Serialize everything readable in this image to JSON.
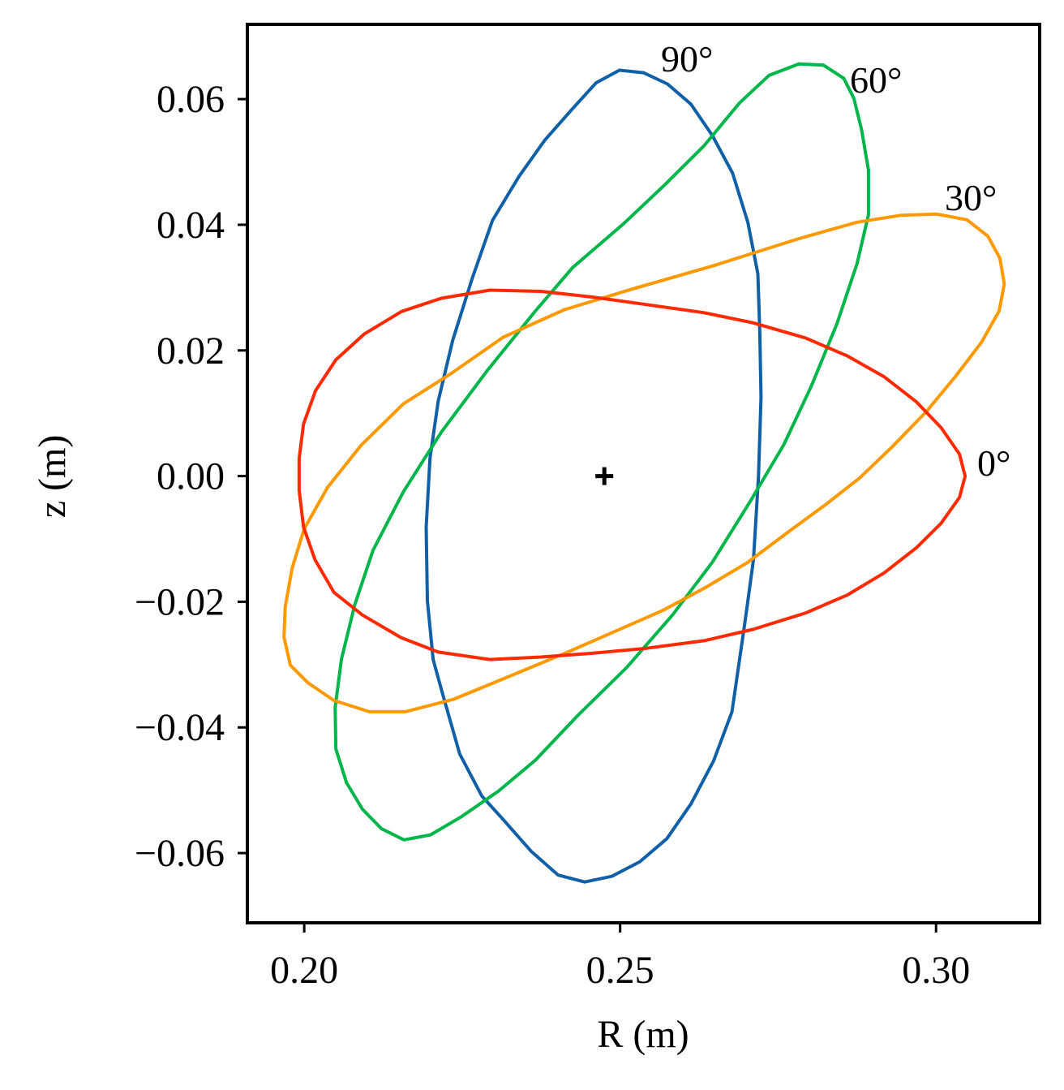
{
  "chart_data": {
    "type": "line",
    "xlabel": "R (m)",
    "ylabel": "z (m)",
    "xlim": [
      0.191,
      0.3164
    ],
    "ylim": [
      -0.0711,
      0.0719
    ],
    "xticks": [
      {
        "value": 0.2,
        "label": "0.20"
      },
      {
        "value": 0.25,
        "label": "0.25"
      },
      {
        "value": 0.3,
        "label": "0.30"
      }
    ],
    "yticks": [
      {
        "value": -0.06,
        "label": "−0.06"
      },
      {
        "value": -0.04,
        "label": "−0.04"
      },
      {
        "value": -0.02,
        "label": "−0.02"
      },
      {
        "value": 0,
        "label": "0.00"
      },
      {
        "value": 0.02,
        "label": "0.02"
      },
      {
        "value": 0.04,
        "label": "0.04"
      },
      {
        "value": 0.06,
        "label": "0.06"
      }
    ],
    "grid": false,
    "center": {
      "x": 0.2475,
      "y": 0
    },
    "series": [
      {
        "name": "90°",
        "color": "#1060a8",
        "x": [
          0.2499,
          0.2537,
          0.2575,
          0.2612,
          0.2646,
          0.2678,
          0.2702,
          0.2718,
          0.2721,
          0.2723,
          0.2719,
          0.2711,
          0.2697,
          0.2677,
          0.2648,
          0.2612,
          0.2574,
          0.2531,
          0.2487,
          0.2444,
          0.2402,
          0.2359,
          0.2317,
          0.2281,
          0.2246,
          0.222,
          0.2204,
          0.2195,
          0.2193,
          0.2199,
          0.2212,
          0.2235,
          0.2266,
          0.2298,
          0.234,
          0.2381,
          0.2425,
          0.2462
        ],
        "values": [
          0.0646,
          0.0642,
          0.0624,
          0.0592,
          0.0542,
          0.0482,
          0.0404,
          0.0322,
          0.0229,
          0.0125,
          0,
          -0.0133,
          -0.0236,
          -0.0375,
          -0.0453,
          -0.0522,
          -0.0577,
          -0.0614,
          -0.0637,
          -0.0646,
          -0.0635,
          -0.0597,
          -0.0549,
          -0.0509,
          -0.0442,
          -0.035,
          -0.0292,
          -0.0198,
          -0.0081,
          0.0028,
          0.0119,
          0.0216,
          0.0315,
          0.0407,
          0.0477,
          0.0535,
          0.0585,
          0.0626
        ]
      },
      {
        "name": "60°",
        "color": "#00b64a",
        "x": [
          0.2783,
          0.2822,
          0.2854,
          0.287,
          0.2882,
          0.2893,
          0.2893,
          0.2875,
          0.2843,
          0.2802,
          0.2759,
          0.2706,
          0.2646,
          0.2583,
          0.251,
          0.2433,
          0.2366,
          0.2308,
          0.2249,
          0.22,
          0.2158,
          0.2122,
          0.2092,
          0.2067,
          0.205,
          0.2049,
          0.2059,
          0.208,
          0.2109,
          0.2157,
          0.2217,
          0.2289,
          0.2366,
          0.2425,
          0.2507,
          0.2571,
          0.2633,
          0.2689,
          0.2736
        ],
        "values": [
          0.0656,
          0.0654,
          0.0633,
          0.0601,
          0.0552,
          0.0487,
          0.0416,
          0.0338,
          0.0242,
          0.0142,
          0.005,
          -0.004,
          -0.0137,
          -0.0221,
          -0.0305,
          -0.0381,
          -0.0452,
          -0.0501,
          -0.0542,
          -0.0571,
          -0.0579,
          -0.0561,
          -0.053,
          -0.0488,
          -0.0434,
          -0.0368,
          -0.0291,
          -0.0205,
          -0.0118,
          -0.0025,
          0.007,
          0.0167,
          0.0263,
          0.0332,
          0.0403,
          0.0464,
          0.0526,
          0.0594,
          0.0638
        ]
      },
      {
        "name": "30°",
        "color": "#ff9900",
        "x": [
          0.3001,
          0.3049,
          0.3082,
          0.3101,
          0.3108,
          0.31,
          0.3072,
          0.3031,
          0.2985,
          0.2931,
          0.2879,
          0.2827,
          0.2766,
          0.2701,
          0.2634,
          0.2567,
          0.249,
          0.2417,
          0.2312,
          0.2237,
          0.216,
          0.2103,
          0.2047,
          0.2006,
          0.1978,
          0.1968,
          0.197,
          0.1981,
          0.2,
          0.2037,
          0.209,
          0.2157,
          0.2235,
          0.2315,
          0.2412,
          0.252,
          0.2648,
          0.2783,
          0.2875,
          0.2944
        ],
        "values": [
          0.0417,
          0.0408,
          0.0382,
          0.0347,
          0.0306,
          0.0263,
          0.0213,
          0.0159,
          0.0103,
          0.0047,
          -0.0003,
          -0.0044,
          -0.0089,
          -0.0138,
          -0.0178,
          -0.0214,
          -0.0248,
          -0.028,
          -0.0324,
          -0.0355,
          -0.0375,
          -0.0375,
          -0.0357,
          -0.0329,
          -0.0301,
          -0.0256,
          -0.0208,
          -0.0146,
          -0.0084,
          -0.0018,
          0.0049,
          0.0115,
          0.0165,
          0.0221,
          0.0265,
          0.0298,
          0.0335,
          0.0378,
          0.0404,
          0.0415
        ]
      },
      {
        "name": "0°",
        "color": "#ff2a00",
        "x": [
          0.3046,
          0.3037,
          0.3008,
          0.2969,
          0.2918,
          0.286,
          0.2793,
          0.271,
          0.2633,
          0.2542,
          0.2456,
          0.2375,
          0.2294,
          0.2212,
          0.2153,
          0.2092,
          0.2047,
          0.2017,
          0.1999,
          0.1992,
          0.1992,
          0.1999,
          0.2018,
          0.205,
          0.2095,
          0.2154,
          0.2217,
          0.2294,
          0.2375,
          0.2456,
          0.2542,
          0.2633,
          0.271,
          0.2793,
          0.286,
          0.2918,
          0.2969,
          0.3008,
          0.3037
        ],
        "values": [
          0,
          -0.0034,
          -0.0075,
          -0.0114,
          -0.0154,
          -0.0189,
          -0.0218,
          -0.0244,
          -0.0262,
          -0.0274,
          -0.0282,
          -0.0288,
          -0.0292,
          -0.028,
          -0.0257,
          -0.0221,
          -0.0185,
          -0.0133,
          -0.0081,
          -0.0023,
          0.0028,
          0.0083,
          0.0136,
          0.0185,
          0.0226,
          0.0262,
          0.0283,
          0.0296,
          0.0294,
          0.0285,
          0.0273,
          0.026,
          0.0244,
          0.022,
          0.0191,
          0.0158,
          0.0118,
          0.0077,
          0.0035
        ]
      }
    ]
  }
}
